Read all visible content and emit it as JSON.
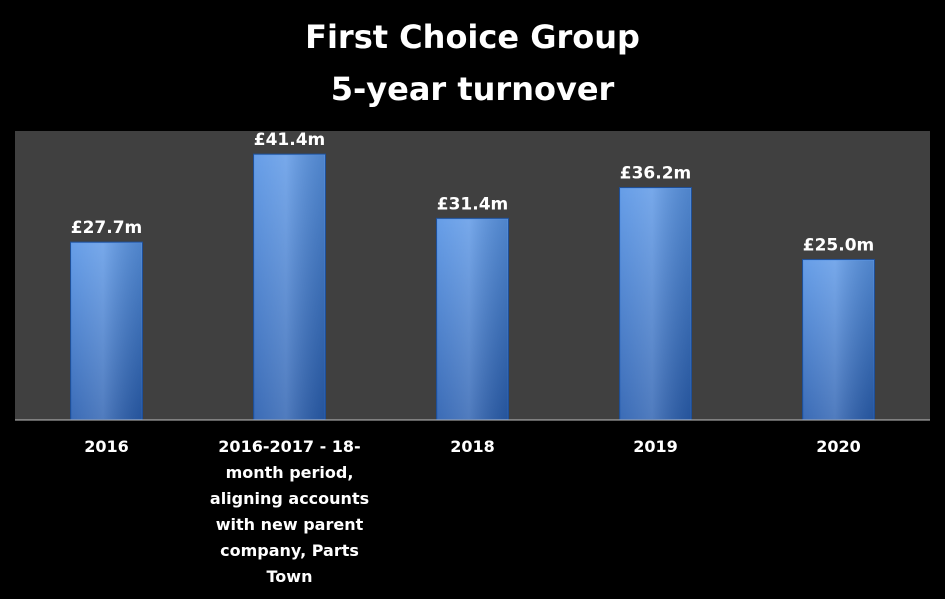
{
  "chart_data": {
    "type": "bar",
    "title": "First Choice Group 5-year turnover",
    "title_lines": [
      "First Choice Group",
      "5-year turnover"
    ],
    "categories": [
      "2016",
      "2016-2017 - 18-month period, aligning accounts with new parent company, Parts Town",
      "2018",
      "2019",
      "2020"
    ],
    "category_label_lines": [
      [
        "2016"
      ],
      [
        "2016-2017 - 18-",
        "month period,",
        "aligning accounts",
        "with new parent",
        "company, Parts",
        "Town"
      ],
      [
        "2018"
      ],
      [
        "2019"
      ],
      [
        "2020"
      ]
    ],
    "values": [
      27.7,
      41.4,
      31.4,
      36.2,
      25.0
    ],
    "data_labels": [
      "£27.7m",
      "£41.4m",
      "£31.4m",
      "£36.2m",
      "£25.0m"
    ],
    "unit": "£m",
    "ylim": [
      0,
      45
    ],
    "xlabel": "",
    "ylabel": "",
    "grid": false,
    "legend": "none",
    "colors": {
      "page_background": "#000000",
      "plot_background": "#404040",
      "bar_top": "#5a96e6",
      "bar_bottom": "#2a5fb0",
      "bar_edge": "#1f4f96",
      "text": "#ffffff",
      "axis_line": "#bfbfbf"
    }
  }
}
